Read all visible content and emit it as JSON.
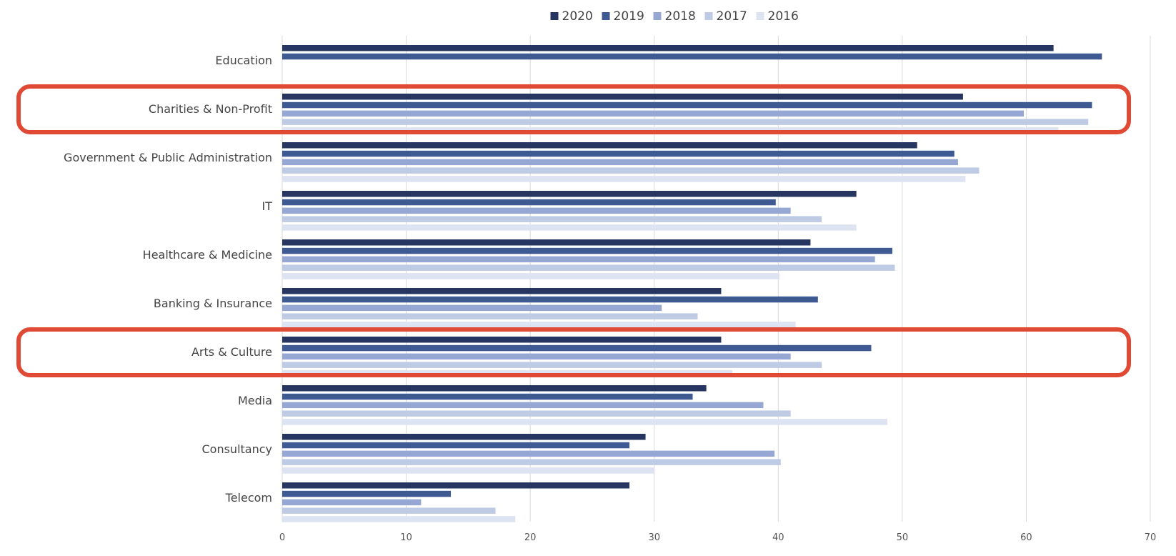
{
  "chart_data": {
    "type": "bar",
    "orientation": "horizontal",
    "categories": [
      "Education",
      "Charities & Non-Profit",
      "Government & Public Administration",
      "IT",
      "Healthcare & Medicine",
      "Banking & Insurance",
      "Arts & Culture",
      "Media",
      "Consultancy",
      "Telecom"
    ],
    "series": [
      {
        "name": "2020",
        "color": "#263661",
        "values": [
          62.2,
          54.9,
          51.2,
          46.3,
          42.6,
          35.4,
          35.4,
          34.2,
          29.3,
          28.0
        ]
      },
      {
        "name": "2019",
        "color": "#3f5a92",
        "values": [
          66.1,
          65.3,
          54.2,
          39.8,
          49.2,
          43.2,
          47.5,
          33.1,
          28.0,
          13.6
        ]
      },
      {
        "name": "2018",
        "color": "#95a7d2",
        "values": [
          null,
          59.8,
          54.5,
          41.0,
          47.8,
          30.6,
          41.0,
          38.8,
          39.7,
          11.2
        ]
      },
      {
        "name": "2017",
        "color": "#bfcbe4",
        "values": [
          null,
          65.0,
          56.2,
          43.5,
          49.4,
          33.5,
          43.5,
          41.0,
          40.2,
          17.2
        ]
      },
      {
        "name": "2016",
        "color": "#dde3f1",
        "values": [
          null,
          62.6,
          55.1,
          46.3,
          40.1,
          41.4,
          36.3,
          48.8,
          30.0,
          18.8
        ]
      }
    ],
    "xlim": [
      0,
      70
    ],
    "xticks": [
      "0",
      "10",
      "20",
      "30",
      "40",
      "50",
      "60",
      "70"
    ],
    "grid": true,
    "legend_position": "top-center",
    "highlighted_categories": [
      "Charities & Non-Profit",
      "Arts & Culture"
    ],
    "highlight_color": "#e04a35"
  }
}
